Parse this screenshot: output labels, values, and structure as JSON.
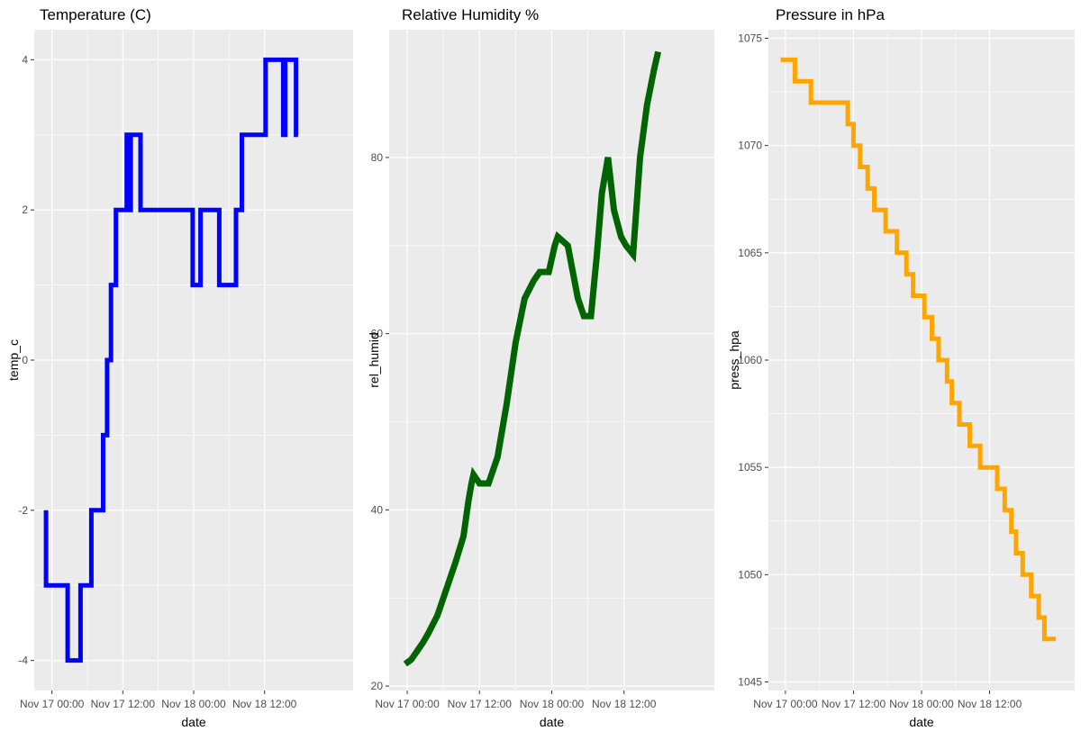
{
  "chart_data": [
    {
      "type": "line",
      "title": "Temperature (C)",
      "xlabel": "date",
      "ylabel": "temp_c",
      "color": "#0000ff",
      "xlim": [
        "2023-11-16T21:00",
        "2023-11-19T03:00"
      ],
      "ylim": [
        -4.4,
        4.4
      ],
      "x_ticks": [
        "Nov 17 00:00",
        "Nov 17 12:00",
        "Nov 18 00:00",
        "Nov 18 12:00"
      ],
      "y_ticks": [
        "-4",
        "-2",
        "0",
        "2",
        "4"
      ],
      "series": [
        {
          "x": [
            "2023-11-16T23:00",
            "2023-11-16T23:00",
            "2023-11-17T02:40",
            "2023-11-17T02:40",
            "2023-11-17T04:50",
            "2023-11-17T04:50",
            "2023-11-17T06:40",
            "2023-11-17T06:40",
            "2023-11-17T08:40",
            "2023-11-17T08:40",
            "2023-11-17T09:20",
            "2023-11-17T09:20",
            "2023-11-17T10:00",
            "2023-11-17T10:00",
            "2023-11-17T10:50",
            "2023-11-17T10:50",
            "2023-11-17T12:40",
            "2023-11-17T12:40",
            "2023-11-17T13:00",
            "2023-11-17T13:00",
            "2023-11-17T13:20",
            "2023-11-17T13:20",
            "2023-11-17T13:40",
            "2023-11-17T13:40",
            "2023-11-17T15:00",
            "2023-11-17T15:00",
            "2023-11-17T23:50",
            "2023-11-17T23:50",
            "2023-11-18T01:10",
            "2023-11-18T01:10",
            "2023-11-18T04:20",
            "2023-11-18T04:20",
            "2023-11-18T07:10",
            "2023-11-18T07:10",
            "2023-11-18T08:10",
            "2023-11-18T08:10",
            "2023-11-18T10:20",
            "2023-11-18T10:20",
            "2023-11-18T12:10",
            "2023-11-18T12:10",
            "2023-11-18T15:10",
            "2023-11-18T15:10",
            "2023-11-18T15:30",
            "2023-11-18T15:30",
            "2023-11-18T17:20",
            "2023-11-18T17:20",
            "2023-11-18T17:40"
          ],
          "values": [
            -2,
            -3,
            -3,
            -4,
            -4,
            -3,
            -3,
            -2,
            -2,
            -1,
            -1,
            0,
            0,
            1,
            1,
            2,
            2,
            3,
            3,
            2,
            2,
            3,
            3,
            3,
            3,
            2,
            2,
            1,
            1,
            2,
            2,
            1,
            1,
            2,
            2,
            3,
            3,
            3,
            3,
            4,
            4,
            3,
            3,
            4,
            4,
            3,
            3
          ]
        }
      ]
    },
    {
      "type": "line",
      "title": "Relative Humidity %",
      "xlabel": "date",
      "ylabel": "rel_humid",
      "color": "#006400",
      "xlim": [
        "2023-11-16T21:00",
        "2023-11-19T03:00"
      ],
      "ylim": [
        19.5,
        94.5
      ],
      "x_ticks": [
        "Nov 17 00:00",
        "Nov 17 12:00",
        "Nov 18 00:00",
        "Nov 18 12:00"
      ],
      "y_ticks": [
        "20",
        "40",
        "60",
        "80"
      ],
      "series": [
        {
          "x": [
            "2023-11-16T23:40",
            "2023-11-17T00:40",
            "2023-11-17T01:40",
            "2023-11-17T02:40",
            "2023-11-17T03:30",
            "2023-11-17T05:00",
            "2023-11-17T06:30",
            "2023-11-17T08:00",
            "2023-11-17T09:20",
            "2023-11-17T10:10",
            "2023-11-17T10:40",
            "2023-11-17T11:00",
            "2023-11-17T12:00",
            "2023-11-17T13:30",
            "2023-11-17T15:00",
            "2023-11-17T16:30",
            "2023-11-17T18:00",
            "2023-11-17T19:30",
            "2023-11-17T21:00",
            "2023-11-17T22:00",
            "2023-11-17T23:30",
            "2023-11-18T00:30",
            "2023-11-18T01:00",
            "2023-11-18T02:40",
            "2023-11-18T04:20",
            "2023-11-18T05:20",
            "2023-11-18T06:30",
            "2023-11-18T07:30",
            "2023-11-18T08:20",
            "2023-11-18T09:20",
            "2023-11-18T10:20",
            "2023-11-18T11:30",
            "2023-11-18T12:20",
            "2023-11-18T13:30",
            "2023-11-18T14:40",
            "2023-11-18T15:50",
            "2023-11-18T17:00",
            "2023-11-18T17:40"
          ],
          "values": [
            22.5,
            23,
            24,
            25,
            26,
            28,
            31,
            34,
            37,
            41,
            43,
            44,
            43,
            43,
            46,
            52,
            59,
            64,
            66,
            67,
            67,
            70,
            71,
            70,
            64,
            62,
            62,
            69,
            76,
            80,
            74,
            71,
            70,
            69,
            80,
            86,
            90,
            92
          ]
        }
      ]
    },
    {
      "type": "line",
      "title": "Pressure in hPa",
      "xlabel": "date",
      "ylabel": "press_hpa",
      "color": "#ffa500",
      "xlim": [
        "2023-11-16T21:00",
        "2023-11-19T03:00"
      ],
      "ylim": [
        1044.6,
        1075.4
      ],
      "x_ticks": [
        "Nov 17 00:00",
        "Nov 17 12:00",
        "Nov 18 00:00",
        "Nov 18 12:00"
      ],
      "y_ticks": [
        "1045",
        "1050",
        "1055",
        "1060",
        "1065",
        "1070",
        "1075"
      ],
      "series": [
        {
          "x": [
            "2023-11-16T23:10",
            "2023-11-17T01:40",
            "2023-11-17T01:40",
            "2023-11-17T04:30",
            "2023-11-17T04:30",
            "2023-11-17T06:20",
            "2023-11-17T06:20",
            "2023-11-17T11:00",
            "2023-11-17T11:00",
            "2023-11-17T12:00",
            "2023-11-17T12:00",
            "2023-11-17T13:10",
            "2023-11-17T13:10",
            "2023-11-17T14:30",
            "2023-11-17T14:30",
            "2023-11-17T15:40",
            "2023-11-17T15:40",
            "2023-11-17T17:40",
            "2023-11-17T17:40",
            "2023-11-17T19:40",
            "2023-11-17T19:40",
            "2023-11-17T21:20",
            "2023-11-17T21:20",
            "2023-11-17T22:30",
            "2023-11-17T22:30",
            "2023-11-18T00:30",
            "2023-11-18T00:30",
            "2023-11-18T01:50",
            "2023-11-18T01:50",
            "2023-11-18T03:00",
            "2023-11-18T03:00",
            "2023-11-18T04:30",
            "2023-11-18T04:30",
            "2023-11-18T05:20",
            "2023-11-18T05:20",
            "2023-11-18T06:40",
            "2023-11-18T06:40",
            "2023-11-18T08:30",
            "2023-11-18T08:30",
            "2023-11-18T10:20",
            "2023-11-18T10:20",
            "2023-11-18T13:20",
            "2023-11-18T13:20",
            "2023-11-18T14:40",
            "2023-11-18T14:40",
            "2023-11-18T15:50",
            "2023-11-18T15:50",
            "2023-11-18T16:40",
            "2023-11-18T16:40",
            "2023-11-18T17:50",
            "2023-11-18T17:50",
            "2023-11-18T19:20",
            "2023-11-18T19:20",
            "2023-11-18T20:40",
            "2023-11-18T20:40",
            "2023-11-18T21:40",
            "2023-11-18T21:40",
            "2023-11-18T23:40"
          ],
          "values": [
            1074,
            1074,
            1073,
            1073,
            1072,
            1072,
            1072,
            1072,
            1071,
            1071,
            1070,
            1070,
            1069,
            1069,
            1068,
            1068,
            1067,
            1067,
            1066,
            1066,
            1065,
            1065,
            1064,
            1064,
            1063,
            1063,
            1062,
            1062,
            1061,
            1061,
            1060,
            1060,
            1059,
            1059,
            1058,
            1058,
            1057,
            1057,
            1056,
            1056,
            1055,
            1055,
            1054,
            1054,
            1053,
            1053,
            1052,
            1052,
            1051,
            1051,
            1050,
            1050,
            1049,
            1049,
            1048,
            1048,
            1047,
            1047
          ]
        }
      ]
    }
  ]
}
